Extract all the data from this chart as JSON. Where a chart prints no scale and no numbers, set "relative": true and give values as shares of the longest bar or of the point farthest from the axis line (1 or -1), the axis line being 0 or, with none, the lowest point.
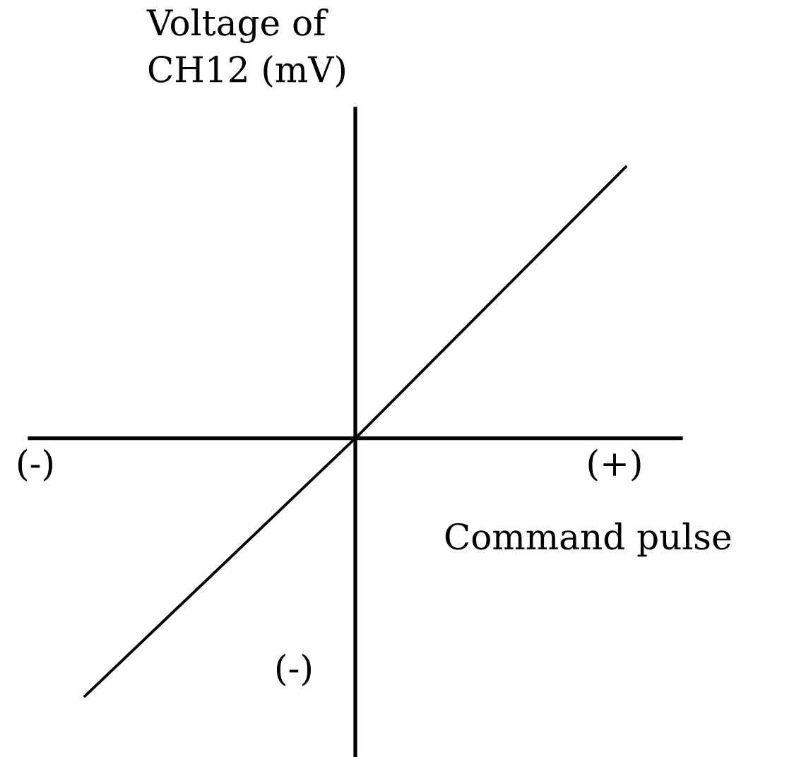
{
  "chart_data": {
    "type": "line",
    "relative": true,
    "xlabel": "Command pulse",
    "ylabel": "Voltage of\nCH12 (mV)",
    "categories": [
      null,
      null,
      null
    ],
    "values": [
      -0.95,
      0,
      1
    ],
    "color": "#000000",
    "annotations": [
      "(-)",
      "(+)",
      "(-)"
    ]
  }
}
